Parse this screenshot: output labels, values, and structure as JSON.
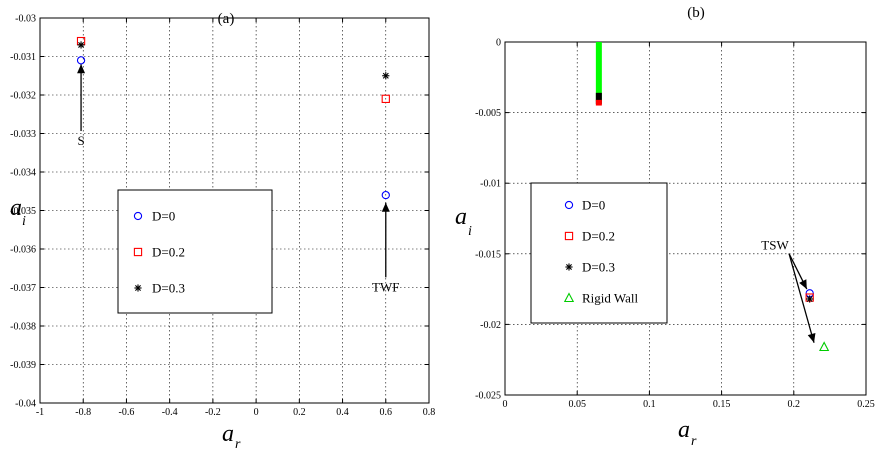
{
  "chart_data": [
    {
      "type": "scatter",
      "title": "(a)",
      "xlabel": "a",
      "xlabel_sub": "r",
      "ylabel": "a",
      "ylabel_sub": "i",
      "xlim": [
        -1,
        0.8
      ],
      "ylim": [
        -0.04,
        -0.03
      ],
      "xticks": [
        -1,
        -0.8,
        -0.6,
        -0.4,
        -0.2,
        0,
        0.2,
        0.4,
        0.6,
        0.8
      ],
      "xtick_labels": [
        "-1",
        "-0.8",
        "-0.6",
        "-0.4",
        "-0.2",
        "0",
        "0.2",
        "0.4",
        "0.6",
        "0.8"
      ],
      "yticks": [
        -0.04,
        -0.039,
        -0.038,
        -0.037,
        -0.036,
        -0.035,
        -0.034,
        -0.033,
        -0.032,
        -0.031,
        -0.03
      ],
      "ytick_labels": [
        "-0.04",
        "-0.039",
        "-0.038",
        "-0.037",
        "-0.036",
        "-0.035",
        "-0.034",
        "-0.033",
        "-0.032",
        "-0.031",
        "-0.03"
      ],
      "grid": true,
      "legend_position": "center-right",
      "series": [
        {
          "name": "D=0",
          "marker": "circle",
          "color": "#0000ff",
          "points": [
            [
              -0.81,
              -0.0311
            ],
            [
              0.6,
              -0.0346
            ]
          ]
        },
        {
          "name": "D=0.2",
          "marker": "square",
          "color": "#ff0000",
          "points": [
            [
              -0.81,
              -0.0306
            ],
            [
              0.6,
              -0.0321
            ]
          ]
        },
        {
          "name": "D=0.3",
          "marker": "star",
          "color": "#000000",
          "points": [
            [
              -0.81,
              -0.0307
            ],
            [
              0.6,
              -0.0315
            ]
          ]
        }
      ],
      "annotations": [
        {
          "text": "S",
          "x": -0.81,
          "y": -0.0333,
          "arrow_to": [
            -0.81,
            -0.0312
          ]
        },
        {
          "text": "TWF",
          "x": 0.6,
          "y": -0.0371,
          "arrow_to": [
            0.6,
            -0.0348
          ]
        }
      ]
    },
    {
      "type": "scatter",
      "title": "(b)",
      "xlabel": "a",
      "xlabel_sub": "r",
      "ylabel": "a",
      "ylabel_sub": "i",
      "xlim": [
        0,
        0.25
      ],
      "ylim": [
        -0.025,
        0
      ],
      "xticks": [
        0,
        0.05,
        0.1,
        0.15,
        0.2,
        0.25
      ],
      "xtick_labels": [
        "0",
        "0.05",
        "0.1",
        "0.15",
        "0.2",
        "0.25"
      ],
      "yticks": [
        -0.025,
        -0.02,
        -0.015,
        -0.01,
        -0.005,
        0
      ],
      "ytick_labels": [
        "-0.025",
        "-0.02",
        "-0.015",
        "-0.01",
        "-0.005",
        "0"
      ],
      "grid": true,
      "legend_position": "center-left",
      "series": [
        {
          "name": "D=0",
          "marker": "circle",
          "color": "#0000ff",
          "points": [
            [
              0.211,
              -0.0178
            ]
          ]
        },
        {
          "name": "D=0.2",
          "marker": "square",
          "color": "#ff0000",
          "points": [
            [
              0.211,
              -0.0181
            ]
          ]
        },
        {
          "name": "D=0.3",
          "marker": "star",
          "color": "#000000",
          "points": [
            [
              0.211,
              -0.0182
            ]
          ]
        },
        {
          "name": "Rigid Wall",
          "marker": "triangle",
          "color": "#00cc00",
          "points": [
            [
              0.221,
              -0.0216
            ]
          ]
        }
      ],
      "continuum": [
        {
          "color": "#00ff00",
          "x": 0.065,
          "y_from": 0,
          "y_to": -0.0042
        },
        {
          "color": "#000000",
          "x": 0.065,
          "y_from": -0.0036,
          "y_to": -0.0044
        },
        {
          "color": "#ff0000",
          "x": 0.065,
          "y_from": -0.0041,
          "y_to": -0.0045
        }
      ],
      "annotations": [
        {
          "text": "TSW",
          "x": 0.187,
          "y": -0.0147,
          "arrows_to": [
            [
              0.209,
              -0.0175
            ],
            [
              0.214,
              -0.0213
            ]
          ]
        }
      ]
    }
  ]
}
